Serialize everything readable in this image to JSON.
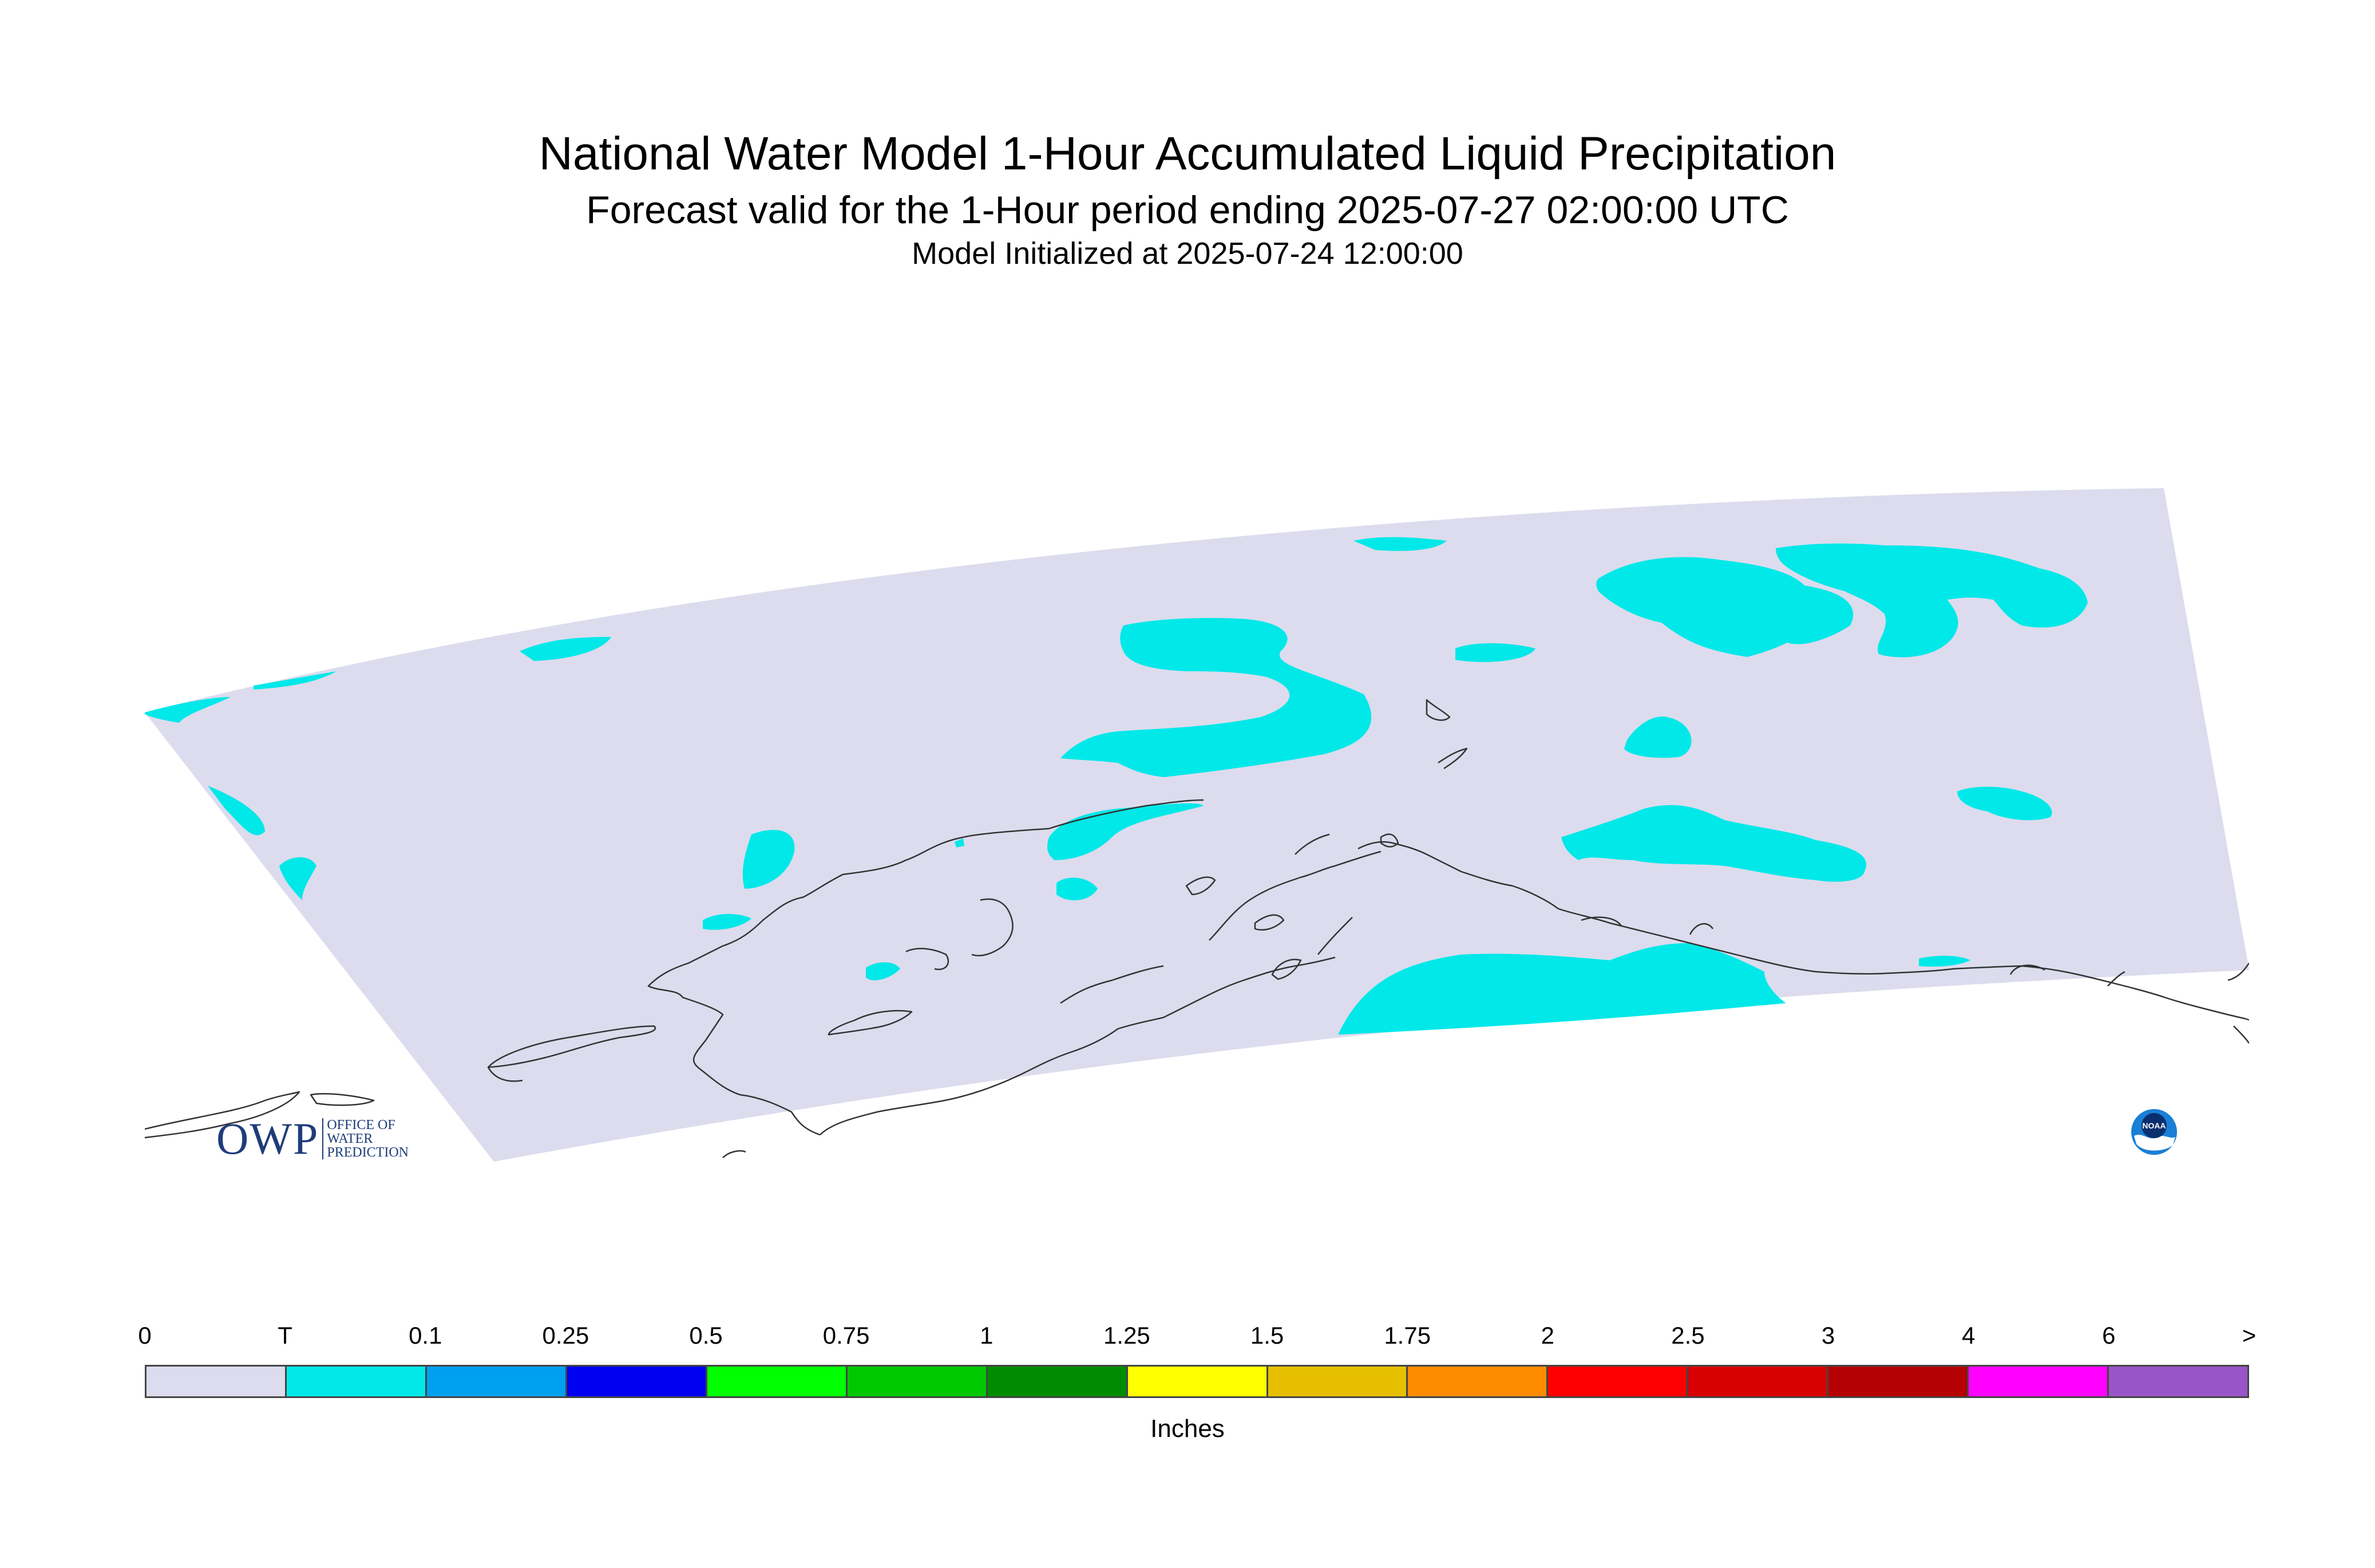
{
  "header": {
    "title": "National Water Model 1-Hour Accumulated Liquid Precipitation",
    "subtitle": "Forecast valid for the 1-Hour period ending 2025-07-27 02:00:00 UTC",
    "init_line": "Model Initialized at 2025-07-24 12:00:00"
  },
  "map": {
    "domain_color": "#dcdcee",
    "precip_color": "#00e8e8",
    "coast_color": "#333333"
  },
  "legend": {
    "tick_labels": [
      "0",
      "T",
      "0.1",
      "0.25",
      "0.5",
      "0.75",
      "1",
      "1.25",
      "1.5",
      "1.75",
      "2",
      "2.5",
      "3",
      "4",
      "6",
      ">"
    ],
    "colors": [
      "#dcdcee",
      "#00e8e8",
      "#00a0f0",
      "#0000f0",
      "#00ff00",
      "#00c800",
      "#008c00",
      "#ffff00",
      "#e6c000",
      "#ff8c00",
      "#ff0000",
      "#d80000",
      "#b40000",
      "#ff00ff",
      "#9955c8"
    ],
    "units": "Inches"
  },
  "logos": {
    "owp_big": "OWP",
    "owp_line1": "OFFICE OF",
    "owp_line2": "WATER",
    "owp_line3": "PREDICTION",
    "noaa_text": "NOAA"
  }
}
